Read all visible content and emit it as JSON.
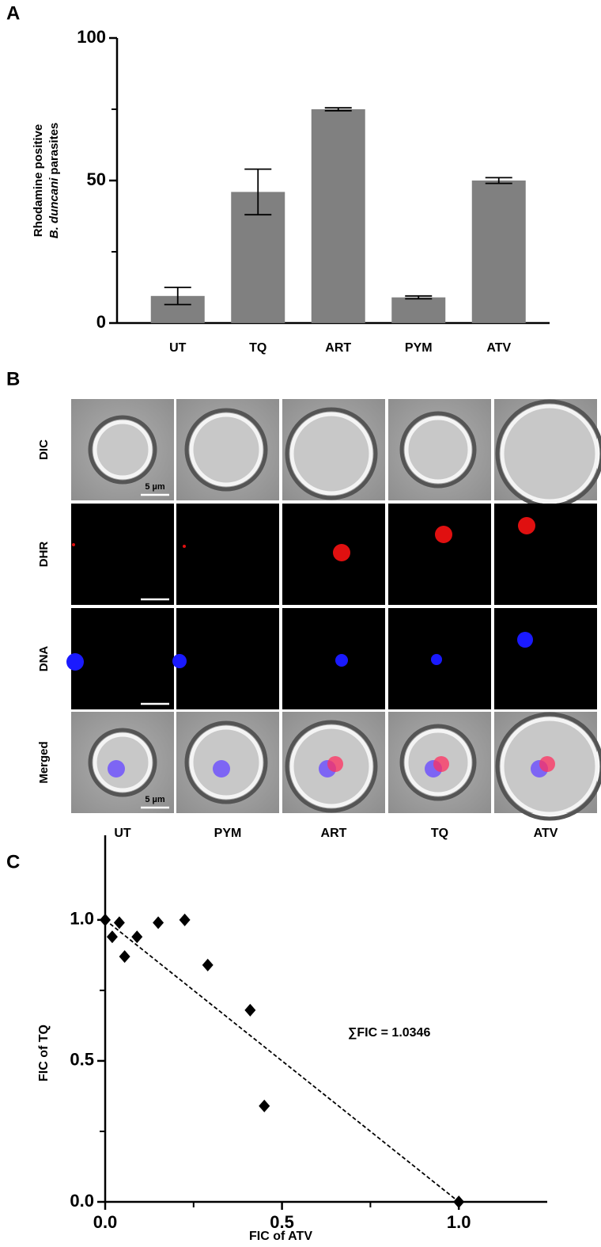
{
  "panel_labels": [
    "A",
    "B",
    "C"
  ],
  "chart_data": [
    {
      "type": "bar",
      "ylabel_lines": [
        [
          {
            "text": "Rhodamine positive"
          }
        ],
        [
          {
            "text": "B. duncani",
            "italic": true
          },
          {
            "text": "parasites"
          }
        ]
      ],
      "categories": [
        "UT",
        "TQ",
        "ART",
        "PYM",
        "ATV"
      ],
      "values": [
        9.5,
        46,
        75,
        9,
        50
      ],
      "errors": [
        3,
        8,
        0.5,
        0.5,
        1
      ],
      "color": "#808080",
      "ylim": [
        0,
        100
      ],
      "yticks": [
        0,
        50,
        100
      ],
      "yminor_ticks": [
        25,
        75
      ]
    },
    {
      "type": "scatter",
      "xlabel": "FIC of ATV",
      "ylabel": "FIC of TQ",
      "annotation": "∑FIC = 1.0346",
      "x": [
        0,
        0.02,
        0.04,
        0.055,
        0.09,
        0.15,
        0.225,
        0.29,
        0.41,
        0.45,
        1.0
      ],
      "y": [
        1.0,
        0.94,
        0.99,
        0.87,
        0.94,
        0.99,
        1.0,
        0.84,
        0.68,
        0.34,
        0.0
      ],
      "color": "#000000",
      "fit_line": {
        "x": [
          0,
          1
        ],
        "y": [
          1,
          0
        ]
      },
      "xlim": [
        0,
        1.25
      ],
      "ylim": [
        0,
        1.3
      ],
      "xticks": [
        {
          "value": 0,
          "label": "0.0"
        },
        {
          "value": 0.5,
          "label": "0.5"
        },
        {
          "value": 1,
          "label": "1.0"
        }
      ],
      "yticks": [
        {
          "value": 0,
          "label": "0.0"
        },
        {
          "value": 0.5,
          "label": "0.5"
        },
        {
          "value": 1,
          "label": "1.0"
        }
      ],
      "xminor_ticks": [
        0.25,
        0.75
      ],
      "yminor_ticks": [
        0.25,
        0.75
      ]
    }
  ],
  "micrograph": {
    "rows": [
      {
        "label": "DIC",
        "color": "#000000"
      },
      {
        "label": "DHR",
        "color": "#d40000"
      },
      {
        "label": "DNA",
        "color": "#1a1aa0"
      },
      {
        "label": "Merged",
        "color": "#000000"
      }
    ],
    "columns": [
      "UT",
      "PYM",
      "ART",
      "TQ",
      "ATV"
    ],
    "scale_bar": "5 µm"
  }
}
